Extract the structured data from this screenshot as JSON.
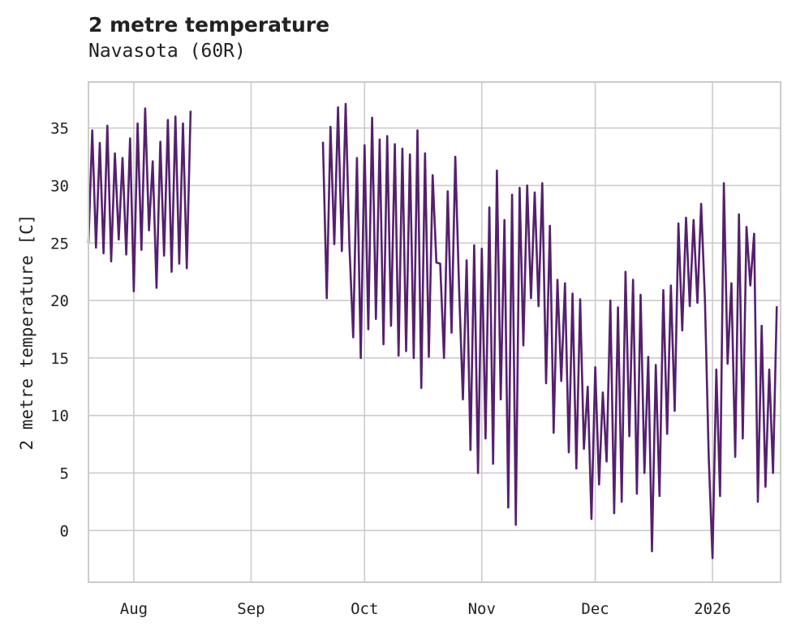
{
  "chart_data": {
    "type": "line",
    "title": "2 metre temperature",
    "subtitle": "Navasota (60R)",
    "xlabel": "",
    "ylabel": "2 metre temperature [C]",
    "x_range": [
      "2025-07-20",
      "2026-01-19"
    ],
    "ylim": [
      -4.5,
      39
    ],
    "yticks": [
      0,
      5,
      10,
      15,
      20,
      25,
      30,
      35
    ],
    "xticks": [
      {
        "date": "2025-08-01",
        "label": "Aug"
      },
      {
        "date": "2025-09-01",
        "label": "Sep"
      },
      {
        "date": "2025-10-01",
        "label": "Oct"
      },
      {
        "date": "2025-11-01",
        "label": "Nov"
      },
      {
        "date": "2025-12-01",
        "label": "Dec"
      },
      {
        "date": "2026-01-01",
        "label": "2026"
      }
    ],
    "grid": true,
    "series": [
      {
        "name": "2 metre temperature",
        "color": "#55206e",
        "points": [
          [
            "2025-07-20",
            25.0
          ],
          [
            "2025-07-21",
            34.8
          ],
          [
            "2025-07-22",
            24.6
          ],
          [
            "2025-07-23",
            33.7
          ],
          [
            "2025-07-24",
            24.1
          ],
          [
            "2025-07-25",
            35.2
          ],
          [
            "2025-07-26",
            23.4
          ],
          [
            "2025-07-27",
            32.8
          ],
          [
            "2025-07-28",
            25.3
          ],
          [
            "2025-07-29",
            32.4
          ],
          [
            "2025-07-30",
            24.0
          ],
          [
            "2025-07-31",
            34.1
          ],
          [
            "2025-08-01",
            20.8
          ],
          [
            "2025-08-02",
            35.4
          ],
          [
            "2025-08-03",
            24.4
          ],
          [
            "2025-08-04",
            36.7
          ],
          [
            "2025-08-05",
            26.1
          ],
          [
            "2025-08-06",
            32.1
          ],
          [
            "2025-08-07",
            21.1
          ],
          [
            "2025-08-08",
            33.8
          ],
          [
            "2025-08-09",
            23.9
          ],
          [
            "2025-08-10",
            35.7
          ],
          [
            "2025-08-11",
            22.5
          ],
          [
            "2025-08-12",
            36.0
          ],
          [
            "2025-08-13",
            23.2
          ],
          [
            "2025-08-14",
            35.4
          ],
          [
            "2025-08-15",
            22.8
          ],
          [
            "2025-08-16",
            36.5
          ],
          [
            "2025-08-16",
            null
          ],
          [
            "2025-09-20",
            33.8
          ],
          [
            "2025-09-21",
            20.2
          ],
          [
            "2025-09-22",
            35.1
          ],
          [
            "2025-09-23",
            24.9
          ],
          [
            "2025-09-24",
            36.8
          ],
          [
            "2025-09-25",
            24.3
          ],
          [
            "2025-09-26",
            37.1
          ],
          [
            "2025-09-27",
            24.8
          ],
          [
            "2025-09-28",
            16.8
          ],
          [
            "2025-09-29",
            32.4
          ],
          [
            "2025-09-30",
            15.0
          ],
          [
            "2025-10-01",
            33.5
          ],
          [
            "2025-10-02",
            17.5
          ],
          [
            "2025-10-03",
            35.9
          ],
          [
            "2025-10-04",
            18.4
          ],
          [
            "2025-10-05",
            34.0
          ],
          [
            "2025-10-06",
            16.2
          ],
          [
            "2025-10-07",
            34.3
          ],
          [
            "2025-10-08",
            17.8
          ],
          [
            "2025-10-09",
            33.6
          ],
          [
            "2025-10-10",
            15.2
          ],
          [
            "2025-10-11",
            33.2
          ],
          [
            "2025-10-12",
            15.6
          ],
          [
            "2025-10-13",
            32.7
          ],
          [
            "2025-10-14",
            15.0
          ],
          [
            "2025-10-15",
            34.8
          ],
          [
            "2025-10-16",
            12.4
          ],
          [
            "2025-10-17",
            32.8
          ],
          [
            "2025-10-18",
            15.1
          ],
          [
            "2025-10-19",
            30.9
          ],
          [
            "2025-10-20",
            23.3
          ],
          [
            "2025-10-21",
            23.2
          ],
          [
            "2025-10-22",
            15.0
          ],
          [
            "2025-10-23",
            29.5
          ],
          [
            "2025-10-24",
            17.2
          ],
          [
            "2025-10-25",
            32.5
          ],
          [
            "2025-10-26",
            21.0
          ],
          [
            "2025-10-27",
            11.4
          ],
          [
            "2025-10-28",
            23.5
          ],
          [
            "2025-10-29",
            7.0
          ],
          [
            "2025-10-30",
            24.8
          ],
          [
            "2025-10-31",
            5.0
          ],
          [
            "2025-11-01",
            24.5
          ],
          [
            "2025-11-02",
            8.0
          ],
          [
            "2025-11-03",
            28.1
          ],
          [
            "2025-11-04",
            5.8
          ],
          [
            "2025-11-05",
            31.3
          ],
          [
            "2025-11-06",
            11.4
          ],
          [
            "2025-11-07",
            27.0
          ],
          [
            "2025-11-08",
            2.0
          ],
          [
            "2025-11-09",
            29.2
          ],
          [
            "2025-11-10",
            0.5
          ],
          [
            "2025-11-11",
            29.8
          ],
          [
            "2025-11-12",
            16.1
          ],
          [
            "2025-11-13",
            30.0
          ],
          [
            "2025-11-14",
            20.2
          ],
          [
            "2025-11-15",
            29.4
          ],
          [
            "2025-11-16",
            19.5
          ],
          [
            "2025-11-17",
            30.2
          ],
          [
            "2025-11-18",
            12.8
          ],
          [
            "2025-11-19",
            26.5
          ],
          [
            "2025-11-20",
            8.5
          ],
          [
            "2025-11-21",
            21.8
          ],
          [
            "2025-11-22",
            13.0
          ],
          [
            "2025-11-23",
            21.5
          ],
          [
            "2025-11-24",
            6.8
          ],
          [
            "2025-11-25",
            20.6
          ],
          [
            "2025-11-26",
            5.4
          ],
          [
            "2025-11-27",
            20.1
          ],
          [
            "2025-11-28",
            7.1
          ],
          [
            "2025-11-29",
            12.5
          ],
          [
            "2025-11-30",
            1.0
          ],
          [
            "2025-12-01",
            14.2
          ],
          [
            "2025-12-02",
            4.0
          ],
          [
            "2025-12-03",
            12.0
          ],
          [
            "2025-12-04",
            6.0
          ],
          [
            "2025-12-05",
            20.0
          ],
          [
            "2025-12-06",
            1.5
          ],
          [
            "2025-12-07",
            19.4
          ],
          [
            "2025-12-08",
            2.5
          ],
          [
            "2025-12-09",
            22.5
          ],
          [
            "2025-12-10",
            8.2
          ],
          [
            "2025-12-11",
            21.8
          ],
          [
            "2025-12-12",
            3.2
          ],
          [
            "2025-12-13",
            20.5
          ],
          [
            "2025-12-14",
            5.0
          ],
          [
            "2025-12-15",
            15.1
          ],
          [
            "2025-12-16",
            -1.8
          ],
          [
            "2025-12-17",
            14.4
          ],
          [
            "2025-12-18",
            3.0
          ],
          [
            "2025-12-19",
            20.9
          ],
          [
            "2025-12-20",
            8.4
          ],
          [
            "2025-12-21",
            21.3
          ],
          [
            "2025-12-22",
            10.4
          ],
          [
            "2025-12-23",
            26.7
          ],
          [
            "2025-12-24",
            17.4
          ],
          [
            "2025-12-25",
            27.2
          ],
          [
            "2025-12-26",
            19.5
          ],
          [
            "2025-12-27",
            27.0
          ],
          [
            "2025-12-28",
            19.8
          ],
          [
            "2025-12-29",
            28.4
          ],
          [
            "2025-12-30",
            20.0
          ],
          [
            "2025-12-31",
            6.5
          ],
          [
            "2026-01-01",
            -2.4
          ],
          [
            "2026-01-02",
            14.0
          ],
          [
            "2026-01-03",
            3.0
          ],
          [
            "2026-01-04",
            30.2
          ],
          [
            "2026-01-05",
            14.5
          ],
          [
            "2026-01-06",
            21.5
          ],
          [
            "2026-01-07",
            6.4
          ],
          [
            "2026-01-08",
            27.5
          ],
          [
            "2026-01-09",
            8.0
          ],
          [
            "2026-01-10",
            26.4
          ],
          [
            "2026-01-11",
            21.3
          ],
          [
            "2026-01-12",
            25.8
          ],
          [
            "2026-01-13",
            2.5
          ],
          [
            "2026-01-14",
            17.8
          ],
          [
            "2026-01-15",
            3.8
          ],
          [
            "2026-01-16",
            14.0
          ],
          [
            "2026-01-17",
            5.0
          ],
          [
            "2026-01-18",
            19.5
          ]
        ]
      }
    ]
  }
}
